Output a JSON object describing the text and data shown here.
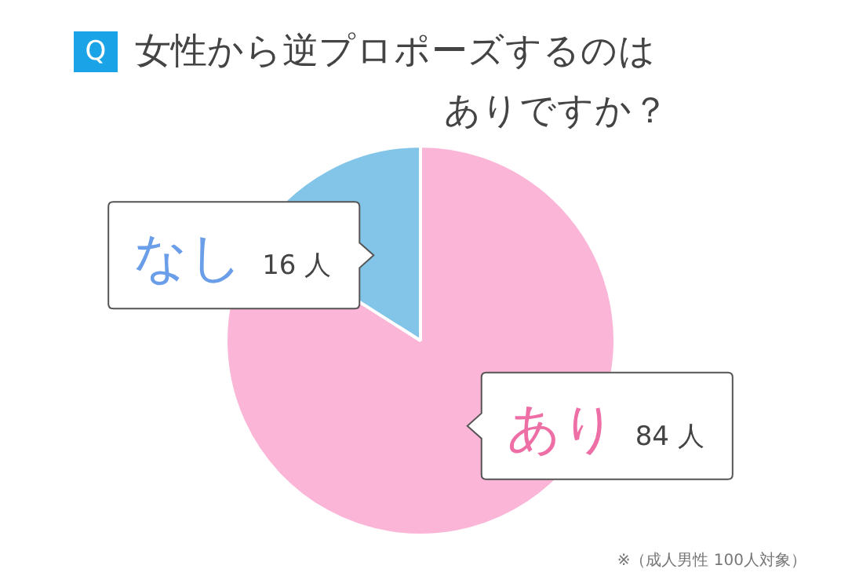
{
  "chart_data": {
    "type": "pie",
    "title": "女性から逆プロポーズするのはありですか？",
    "categories": [
      "あり",
      "なし"
    ],
    "values": [
      84,
      16
    ],
    "colors": [
      "#fbb6d7",
      "#82c5e8"
    ],
    "value_labels": [
      "84 人",
      "16 人"
    ],
    "legend": false,
    "annotations": [
      "Q",
      "※（成人男性 100人対象）"
    ]
  }
}
